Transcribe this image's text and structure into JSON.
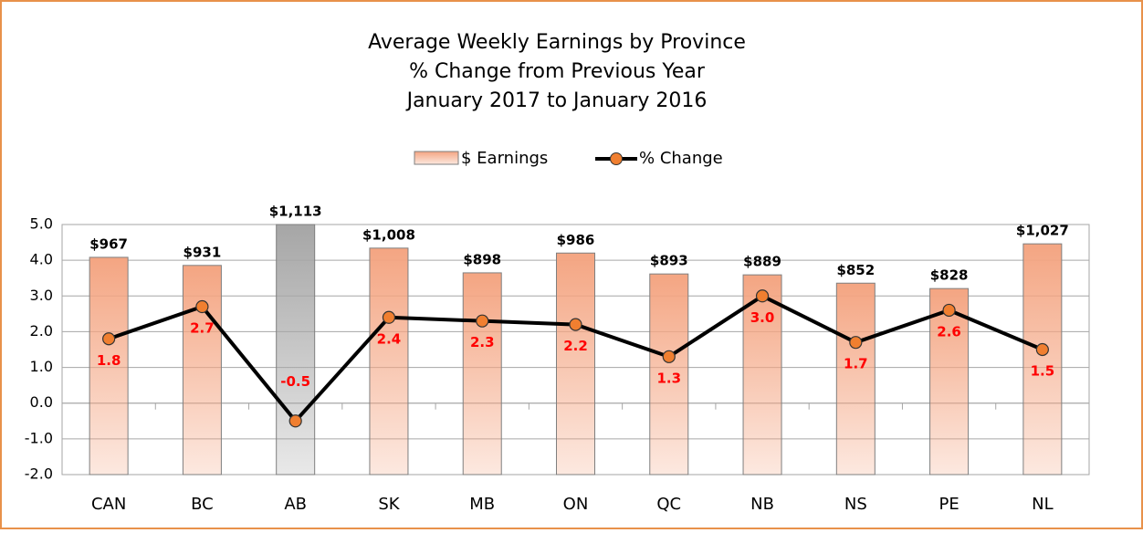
{
  "chart_data": {
    "type": "bar-line",
    "title": "Average Weekly Earnings by Province",
    "subtitle": [
      "% Change from Previous Year",
      "January 2017 to January 2016"
    ],
    "categories": [
      "CAN",
      "BC",
      "AB",
      "SK",
      "MB",
      "ON",
      "QC",
      "NB",
      "NS",
      "PE",
      "NL"
    ],
    "series": [
      {
        "name": "$ Earnings",
        "type": "bar",
        "axis": "y2",
        "colors": [
          "#f4a582",
          "#f4a582",
          "#a6a6a6",
          "#f4a582",
          "#f4a582",
          "#f4a582",
          "#f4a582",
          "#f4a582",
          "#f4a582",
          "#f4a582",
          "#f4a582"
        ],
        "values": [
          967,
          931,
          1113,
          1008,
          898,
          986,
          893,
          889,
          852,
          828,
          1027
        ],
        "value_labels": [
          "$967",
          "$931",
          "$1,113",
          "$1,008",
          "$898",
          "$986",
          "$893",
          "$889",
          "$852",
          "$828",
          "$1,027"
        ]
      },
      {
        "name": "% Change",
        "type": "line",
        "color": "#000000",
        "marker_color": "#f07f30",
        "values": [
          1.8,
          2.7,
          -0.5,
          2.4,
          2.3,
          2.2,
          1.3,
          3.0,
          1.7,
          2.6,
          1.5
        ],
        "value_labels": [
          "1.8",
          "2.7",
          "-0.5",
          "2.4",
          "2.3",
          "2.2",
          "1.3",
          "3.0",
          "1.7",
          "2.6",
          "1.5"
        ]
      }
    ],
    "ylim": [
      -2,
      5
    ],
    "yticks": [
      {
        "value": -2,
        "label": "-2.0"
      },
      {
        "value": -1,
        "label": "-1.0"
      },
      {
        "value": 0,
        "label": "0.0"
      },
      {
        "value": 1,
        "label": "1.0"
      },
      {
        "value": 2,
        "label": "2.0"
      },
      {
        "value": 3,
        "label": "3.0"
      },
      {
        "value": 4,
        "label": "4.0"
      },
      {
        "value": 5,
        "label": "5.0"
      }
    ],
    "y2lim": [
      0,
      1113
    ],
    "grid": true,
    "legend": "top"
  }
}
